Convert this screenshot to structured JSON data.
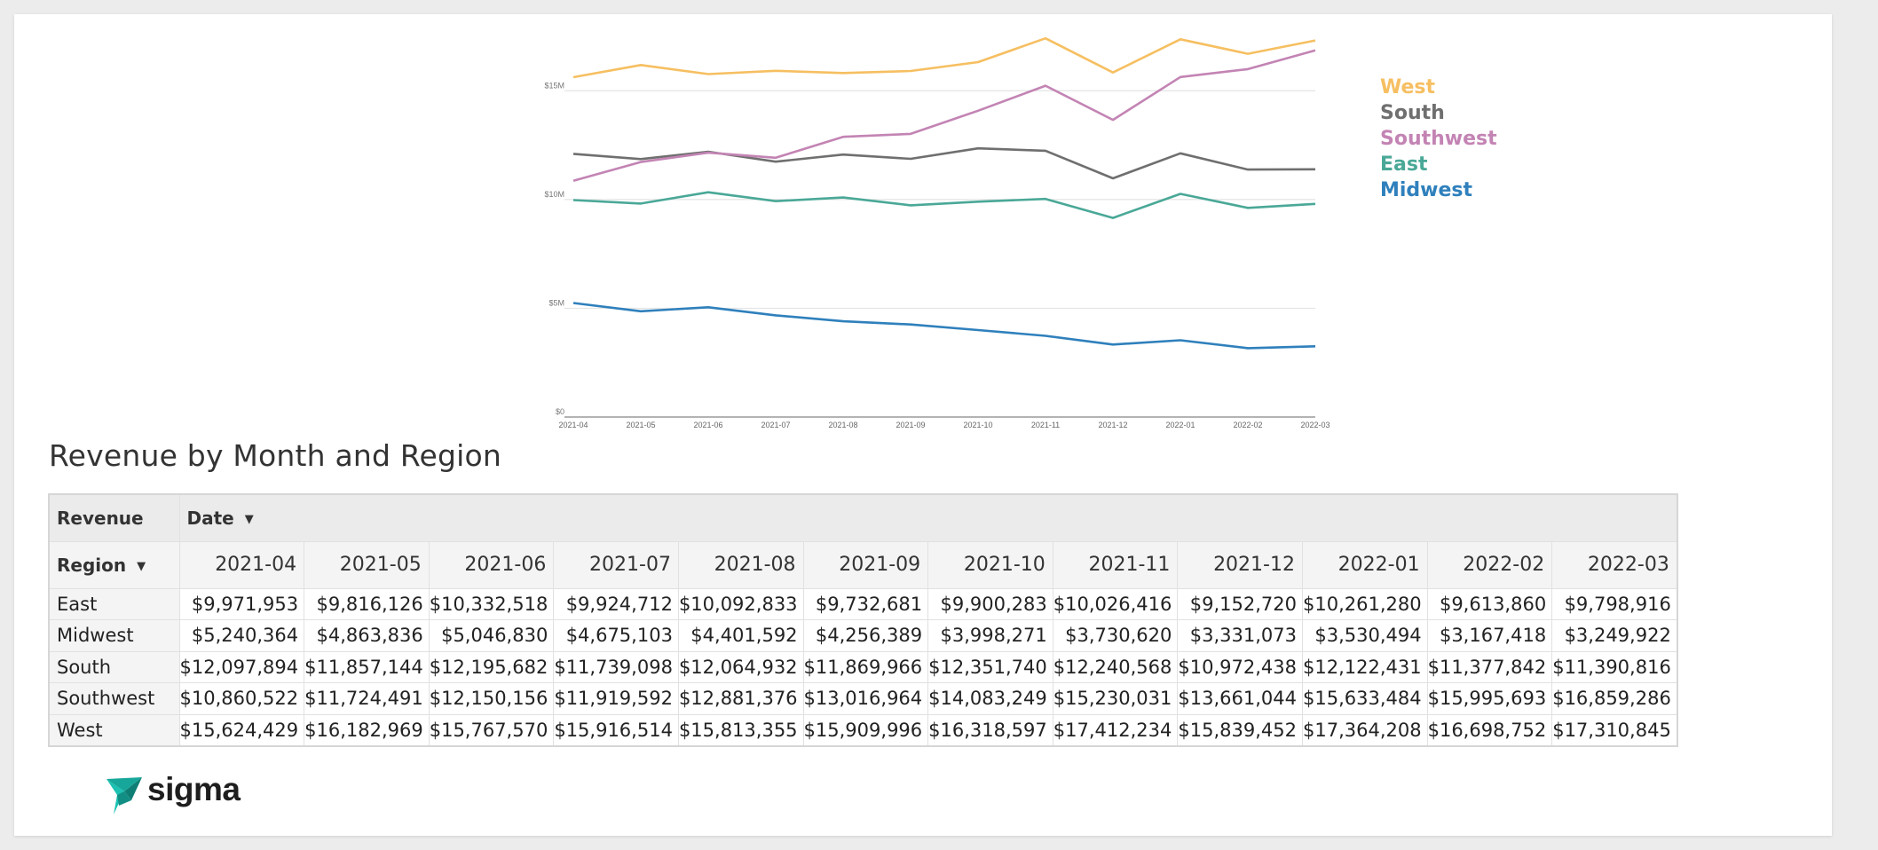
{
  "brand": {
    "name": "sigma",
    "color": "#17a79a"
  },
  "table": {
    "title": "Revenue by Month and Region",
    "corner_label": "Revenue",
    "date_label": "Date",
    "region_label": "Region",
    "columns": [
      "2021-04",
      "2021-05",
      "2021-06",
      "2021-07",
      "2021-08",
      "2021-09",
      "2021-10",
      "2021-11",
      "2021-12",
      "2022-01",
      "2022-02",
      "2022-03"
    ],
    "rows": [
      {
        "region": "East",
        "values": [
          "$9,971,953",
          "$9,816,126",
          "$10,332,518",
          "$9,924,712",
          "$10,092,833",
          "$9,732,681",
          "$9,900,283",
          "$10,026,416",
          "$9,152,720",
          "$10,261,280",
          "$9,613,860",
          "$9,798,916"
        ]
      },
      {
        "region": "Midwest",
        "values": [
          "$5,240,364",
          "$4,863,836",
          "$5,046,830",
          "$4,675,103",
          "$4,401,592",
          "$4,256,389",
          "$3,998,271",
          "$3,730,620",
          "$3,331,073",
          "$3,530,494",
          "$3,167,418",
          "$3,249,922"
        ]
      },
      {
        "region": "South",
        "values": [
          "$12,097,894",
          "$11,857,144",
          "$12,195,682",
          "$11,739,098",
          "$12,064,932",
          "$11,869,966",
          "$12,351,740",
          "$12,240,568",
          "$10,972,438",
          "$12,122,431",
          "$11,377,842",
          "$11,390,816"
        ]
      },
      {
        "region": "Southwest",
        "values": [
          "$10,860,522",
          "$11,724,491",
          "$12,150,156",
          "$11,919,592",
          "$12,881,376",
          "$13,016,964",
          "$14,083,249",
          "$15,230,031",
          "$13,661,044",
          "$15,633,484",
          "$15,995,693",
          "$16,859,286"
        ]
      },
      {
        "region": "West",
        "values": [
          "$15,624,429",
          "$16,182,969",
          "$15,767,570",
          "$15,916,514",
          "$15,813,355",
          "$15,909,996",
          "$16,318,597",
          "$17,412,234",
          "$15,839,452",
          "$17,364,208",
          "$16,698,752",
          "$17,310,845"
        ]
      }
    ]
  },
  "chart_data": {
    "type": "line",
    "title": "",
    "xlabel": "",
    "ylabel": "",
    "x": [
      "2021-04",
      "2021-05",
      "2021-06",
      "2021-07",
      "2021-08",
      "2021-09",
      "2021-10",
      "2021-11",
      "2021-12",
      "2022-01",
      "2022-02",
      "2022-03"
    ],
    "ylim": [
      0,
      17500000
    ],
    "yticks": [
      0,
      5000000,
      10000000,
      15000000
    ],
    "ytick_labels": [
      "$0",
      "$5M",
      "$10M",
      "$15M"
    ],
    "grid": true,
    "legend": "right",
    "series": [
      {
        "name": "West",
        "color": "#f6bf61",
        "values": [
          15624429,
          16182969,
          15767570,
          15916514,
          15813355,
          15909996,
          16318597,
          17412234,
          15839452,
          17364208,
          16698752,
          17310845
        ]
      },
      {
        "name": "South",
        "color": "#6f6f6f",
        "values": [
          12097894,
          11857144,
          12195682,
          11739098,
          12064932,
          11869966,
          12351740,
          12240568,
          10972438,
          12122431,
          11377842,
          11390816
        ]
      },
      {
        "name": "Southwest",
        "color": "#c384b4",
        "values": [
          10860522,
          11724491,
          12150156,
          11919592,
          12881376,
          13016964,
          14083249,
          15230031,
          13661044,
          15633484,
          15995693,
          16859286
        ]
      },
      {
        "name": "East",
        "color": "#4aa897",
        "values": [
          9971953,
          9816126,
          10332518,
          9924712,
          10092833,
          9732681,
          9900283,
          10026416,
          9152720,
          10261280,
          9613860,
          9798916
        ]
      },
      {
        "name": "Midwest",
        "color": "#2f80bc",
        "values": [
          5240364,
          4863836,
          5046830,
          4675103,
          4401592,
          4256389,
          3998271,
          3730620,
          3331073,
          3530494,
          3167418,
          3249922
        ]
      }
    ]
  }
}
